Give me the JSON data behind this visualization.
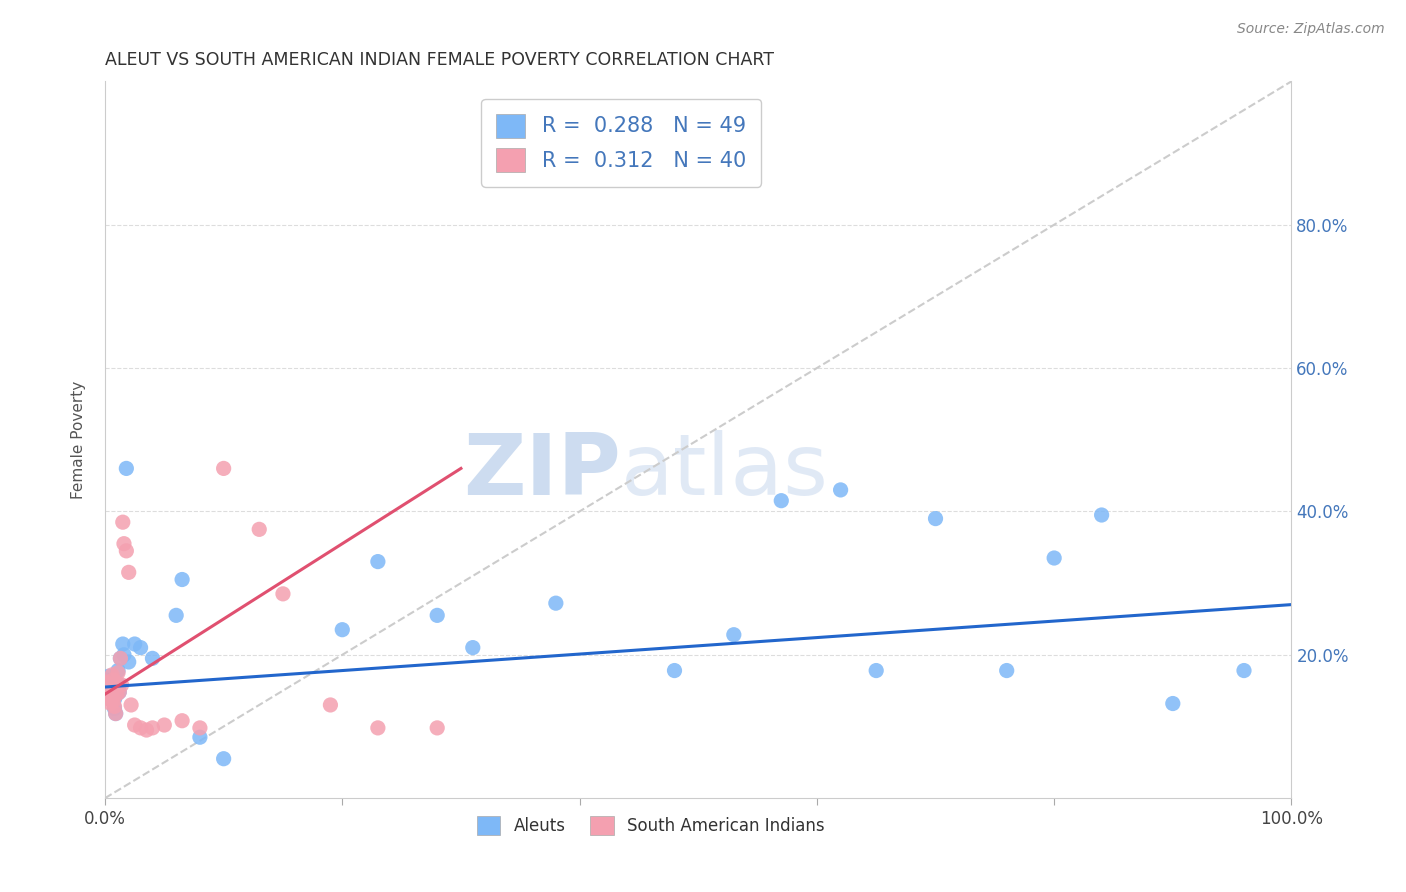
{
  "title": "ALEUT VS SOUTH AMERICAN INDIAN FEMALE POVERTY CORRELATION CHART",
  "source": "Source: ZipAtlas.com",
  "ylabel": "Female Poverty",
  "xlim": [
    0.0,
    1.0
  ],
  "ylim": [
    0.0,
    1.0
  ],
  "xtick_vals": [
    0.0,
    0.2,
    0.4,
    0.6,
    0.8,
    1.0
  ],
  "xtick_labels_show": [
    "0.0%",
    "",
    "",
    "",
    "",
    "100.0%"
  ],
  "ytick_vals": [
    0.2,
    0.4,
    0.6,
    0.8
  ],
  "ytick_labels": [
    "20.0%",
    "40.0%",
    "60.0%",
    "80.0%"
  ],
  "aleut_color": "#7EB8F7",
  "sai_color": "#F4A0B0",
  "aleut_line_color": "#2266CC",
  "sai_line_color": "#E05070",
  "diagonal_color": "#CCCCCC",
  "watermark_zip": "ZIP",
  "watermark_atlas": "atlas",
  "legend_r_aleut": "0.288",
  "legend_n_aleut": "49",
  "legend_r_sai": "0.312",
  "legend_n_sai": "40",
  "aleut_x": [
    0.001,
    0.002,
    0.002,
    0.003,
    0.003,
    0.004,
    0.004,
    0.005,
    0.005,
    0.006,
    0.006,
    0.007,
    0.007,
    0.008,
    0.008,
    0.009,
    0.01,
    0.01,
    0.011,
    0.012,
    0.012,
    0.013,
    0.015,
    0.016,
    0.018,
    0.02,
    0.025,
    0.03,
    0.04,
    0.06,
    0.065,
    0.08,
    0.1,
    0.2,
    0.23,
    0.28,
    0.31,
    0.38,
    0.48,
    0.53,
    0.57,
    0.62,
    0.65,
    0.7,
    0.76,
    0.8,
    0.84,
    0.9,
    0.96
  ],
  "aleut_y": [
    0.16,
    0.165,
    0.155,
    0.148,
    0.17,
    0.145,
    0.153,
    0.142,
    0.155,
    0.148,
    0.16,
    0.135,
    0.142,
    0.125,
    0.138,
    0.118,
    0.145,
    0.16,
    0.178,
    0.148,
    0.158,
    0.195,
    0.215,
    0.2,
    0.46,
    0.19,
    0.215,
    0.21,
    0.195,
    0.255,
    0.305,
    0.085,
    0.055,
    0.235,
    0.33,
    0.255,
    0.21,
    0.272,
    0.178,
    0.228,
    0.415,
    0.43,
    0.178,
    0.39,
    0.178,
    0.335,
    0.395,
    0.132,
    0.178
  ],
  "sai_x": [
    0.001,
    0.002,
    0.002,
    0.003,
    0.003,
    0.004,
    0.004,
    0.005,
    0.005,
    0.006,
    0.006,
    0.007,
    0.007,
    0.008,
    0.008,
    0.009,
    0.01,
    0.01,
    0.011,
    0.012,
    0.013,
    0.014,
    0.015,
    0.016,
    0.018,
    0.02,
    0.022,
    0.025,
    0.03,
    0.035,
    0.04,
    0.05,
    0.065,
    0.08,
    0.1,
    0.13,
    0.15,
    0.19,
    0.23,
    0.28
  ],
  "sai_y": [
    0.162,
    0.15,
    0.16,
    0.145,
    0.155,
    0.138,
    0.148,
    0.132,
    0.155,
    0.142,
    0.172,
    0.135,
    0.165,
    0.128,
    0.155,
    0.118,
    0.145,
    0.16,
    0.175,
    0.148,
    0.195,
    0.158,
    0.385,
    0.355,
    0.345,
    0.315,
    0.13,
    0.102,
    0.098,
    0.095,
    0.098,
    0.102,
    0.108,
    0.098,
    0.46,
    0.375,
    0.285,
    0.13,
    0.098,
    0.098
  ]
}
